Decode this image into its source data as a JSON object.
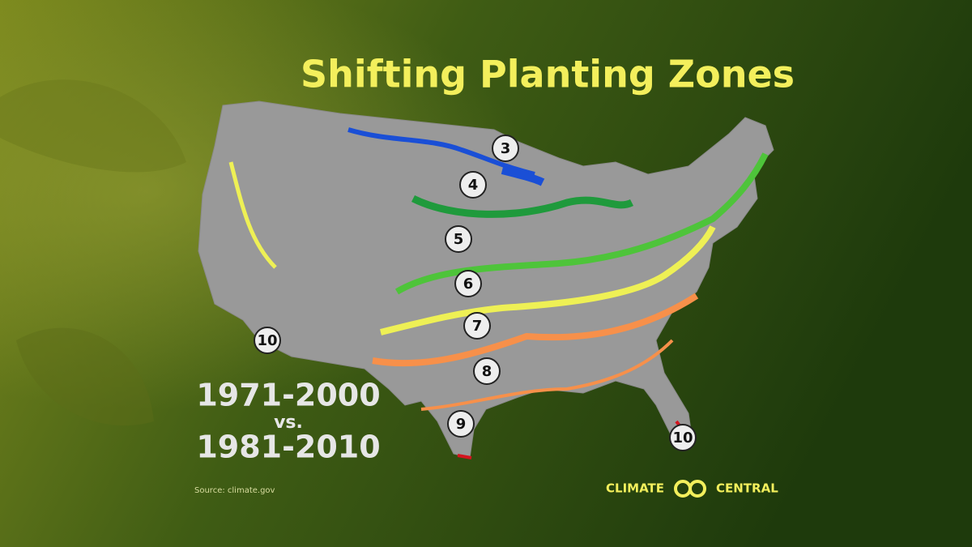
{
  "header": {
    "title": "Shifting Planting Zones"
  },
  "zones": [
    {
      "label": 3
    },
    {
      "label": 4
    },
    {
      "label": 5
    },
    {
      "label": 6
    },
    {
      "label": 7
    },
    {
      "label": 8
    },
    {
      "label": 9
    },
    {
      "label": 10
    },
    {
      "label": 10
    }
  ],
  "comparison": {
    "period_a": "1971-2000",
    "separator": "vs.",
    "period_b": "1981-2010"
  },
  "source": "Source: climate.gov",
  "logo": {
    "left": "CLIMATE",
    "right": "CENTRAL"
  }
}
